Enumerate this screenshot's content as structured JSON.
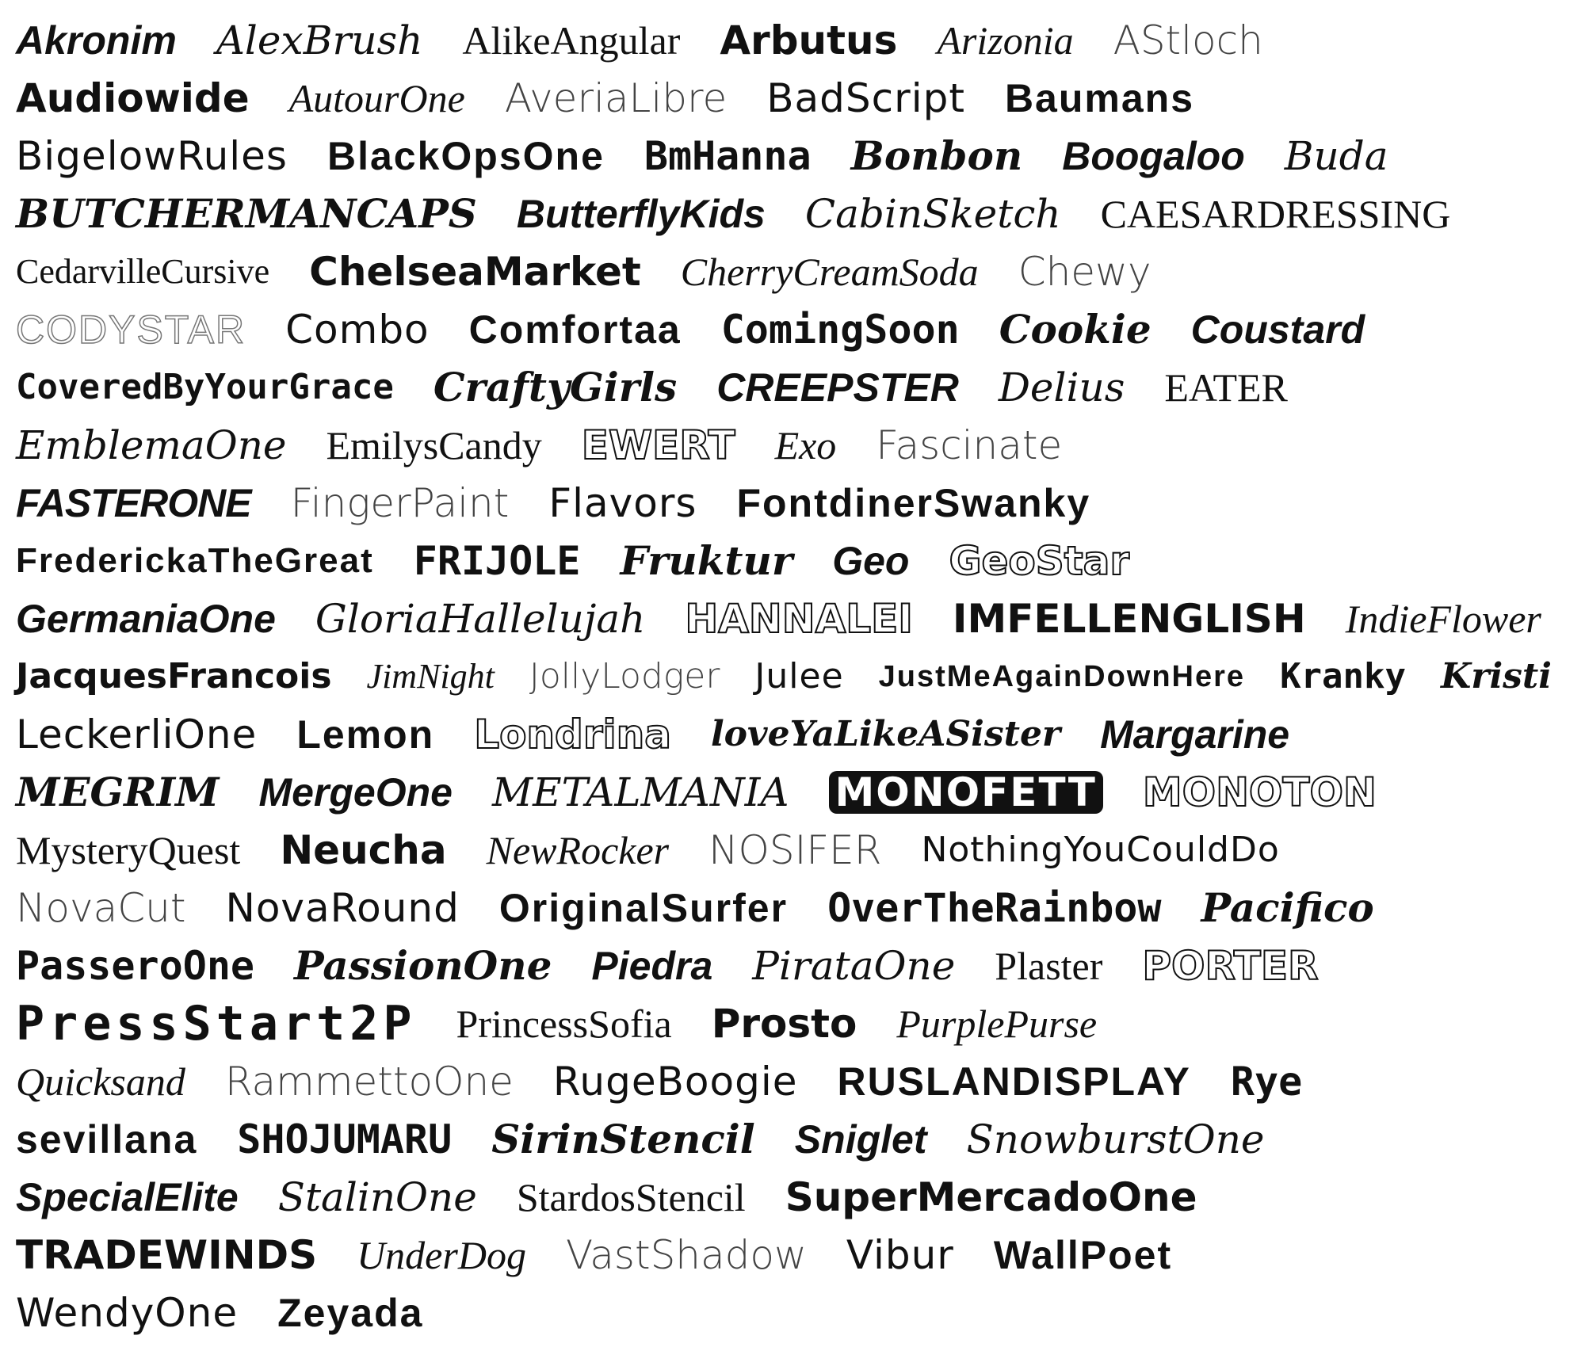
{
  "font_rows": [
    [
      "Akronim",
      "AlexBrush",
      "AlikeAngular",
      "Arbutus",
      "Arizonia",
      "AStloch"
    ],
    [
      "Audiowide",
      "AutourOne",
      "AveriaLibre",
      "BadScript",
      "Baumans"
    ],
    [
      "BigelowRules",
      "BlackOpsOne",
      "BmHanna",
      "Bonbon",
      "Boogaloo",
      "Buda"
    ],
    [
      "BUTCHERMANCAPS",
      "ButterflyKids",
      "CabinSketch",
      "CAESARDRESSING"
    ],
    [
      "CedarvilleCursive",
      "ChelseaMarket",
      "CherryCreamSoda",
      "Chewy"
    ],
    [
      "CODYSTAR",
      "Combo",
      "Comfortaa",
      "ComingSoon",
      "Cookie",
      "Coustard"
    ],
    [
      "CoveredByYourGrace",
      "CraftyGirls",
      "CREEPSTER",
      "Delius",
      "EATER"
    ],
    [
      "EmblemaOne",
      "EmilysCandy",
      "EWERT",
      "Exo",
      "Fascinate"
    ],
    [
      "FASTERONE",
      "FingerPaint",
      "Flavors",
      "FontdinerSwanky"
    ],
    [
      "FrederickaTheGreat",
      "FRIJOLE",
      "Fruktur",
      "Geo",
      "GeoStar"
    ],
    [
      "GermaniaOne",
      "GloriaHallelujah",
      "HANNALEI",
      "IMFELLENGLISH",
      "IndieFlower"
    ],
    [
      "JacquesFrancois",
      "JimNight",
      "JollyLodger",
      "Julee",
      "JustMeAgainDownHere",
      "Kranky",
      "Kristi"
    ],
    [
      "LeckerliOne",
      "Lemon",
      "Londrina",
      "loveYaLikeASister",
      "Margarine"
    ],
    [
      "MEGRIM",
      "MergeOne",
      "METALMANIA",
      "MONOFETT",
      "MONOTON"
    ],
    [
      "MysteryQuest",
      "Neucha",
      "NewRocker",
      "NOSIFER",
      "NothingYouCouldDo"
    ],
    [
      "NovaCut",
      "NovaRound",
      "OriginalSurfer",
      "OverTheRainbow",
      "Pacifico"
    ],
    [
      "PasseroOne",
      "PassionOne",
      "Piedra",
      "PirataOne",
      "Plaster",
      "PORTER"
    ],
    [
      "PressStart2P",
      "PrincessSofia",
      "Prosto",
      "PurplePurse"
    ],
    [
      "Quicksand",
      "RammettoOne",
      "RugeBoogie",
      "RUSLANDISPLAY",
      "Rye"
    ],
    [
      "sevillana",
      "SHOJUMARU",
      "SirinStencil",
      "Sniglet",
      "SnowburstOne"
    ],
    [
      "SpecialElite",
      "StalinOne",
      "StardosStencil",
      "SuperMercadoOne"
    ],
    [
      "TRADEWINDS",
      "UnderDog",
      "VastShadow",
      "Vibur",
      "WallPoet"
    ],
    [
      "WendyOne",
      "Zeyada"
    ]
  ]
}
